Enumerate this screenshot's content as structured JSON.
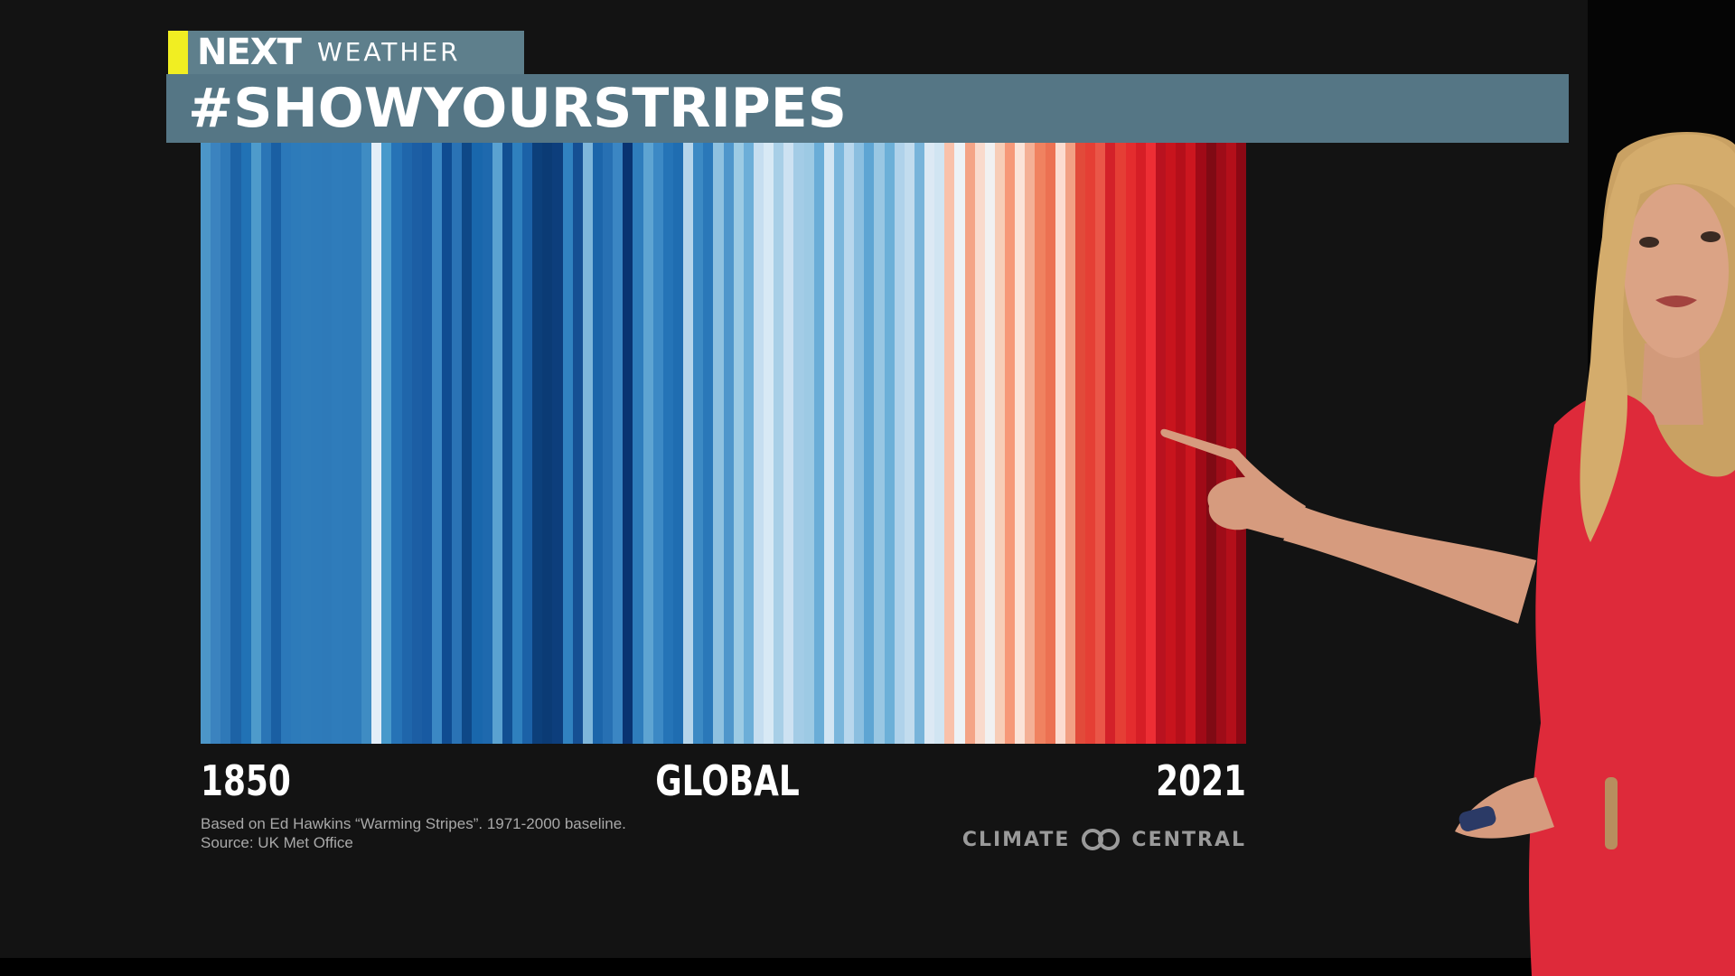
{
  "brand": {
    "name": "NEXT",
    "section": "WEATHER",
    "accent_color": "#f1ee22",
    "band_color": "#5e7f8c"
  },
  "title": "#SHOWYOURSTRIPES",
  "chart_data": {
    "type": "heatmap",
    "title": "",
    "region_label": "GLOBAL",
    "x_start_label": "1850",
    "x_end_label": "2021",
    "x_range": [
      1850,
      2021
    ],
    "stripe_colors": [
      "#4c96c8",
      "#3b83bf",
      "#2f79b8",
      "#1d63a6",
      "#2172b5",
      "#4e9bcb",
      "#2a75b6",
      "#1a5fa3",
      "#2b78b9",
      "#2d7bba",
      "#2f7cba",
      "#2e7bba",
      "#2e7ab9",
      "#2f7cbb",
      "#2e7bba",
      "#2e7bba",
      "#3f8cc3",
      "#e3eef8",
      "#4799cb",
      "#2673b6",
      "#1f66ab",
      "#1c5ea4",
      "#185aa2",
      "#3b88c4",
      "#0f4c91",
      "#2a73b5",
      "#0e4887",
      "#1967ac",
      "#1e69ae",
      "#5aa2d1",
      "#114f92",
      "#2f80be",
      "#1b61a7",
      "#0c3f7a",
      "#0b3b75",
      "#0d3e7c",
      "#3182c0",
      "#154f93",
      "#7eb6db",
      "#1c65aa",
      "#2770b3",
      "#3b86c3",
      "#093371",
      "#2f7dbc",
      "#5ea4d2",
      "#3c89c5",
      "#2574b7",
      "#1f6db1",
      "#b5d5eb",
      "#3c8ac4",
      "#2a78b9",
      "#8ec1e0",
      "#4e96cb",
      "#9ccbe4",
      "#6caed8",
      "#c6def0",
      "#d8e9f5",
      "#a8cfe7",
      "#cde2f2",
      "#a3cce6",
      "#9dcae4",
      "#6aadd7",
      "#d2e5f3",
      "#7ab6dc",
      "#b8d7ed",
      "#8bbfe0",
      "#5ea5d3",
      "#99c7e3",
      "#6cb0d8",
      "#afd2ea",
      "#c2dcee",
      "#78b4da",
      "#dce9f4",
      "#d1e5f2",
      "#f9c1aa",
      "#edf2f6",
      "#f4a486",
      "#f9dacc",
      "#f1f1f1",
      "#f7cdb7",
      "#f69878",
      "#fbe3d8",
      "#f4b096",
      "#f08260",
      "#ec7152",
      "#fcdcd0",
      "#f2a084",
      "#e24a3a",
      "#e53f35",
      "#ea5648",
      "#d32129",
      "#e53e35",
      "#e42c2e",
      "#d61e26",
      "#ed2e34",
      "#b9121f",
      "#c8141d",
      "#b50f1a",
      "#cc161f",
      "#a00a17",
      "#800a14",
      "#9e0c18",
      "#b30f1a",
      "#8b0814"
    ]
  },
  "credits": {
    "line1": "Based on Ed Hawkins “Warming Stripes”. 1971-2000 baseline.",
    "line2": "Source: UK Met Office"
  },
  "logo": {
    "left_word": "CLIMATE",
    "right_word": "CENTRAL",
    "icon": "linked-rings-icon"
  },
  "colors": {
    "background": "#131313",
    "title_band": "#557685",
    "text": "#ffffff",
    "credit_text": "#a9a9a9"
  }
}
